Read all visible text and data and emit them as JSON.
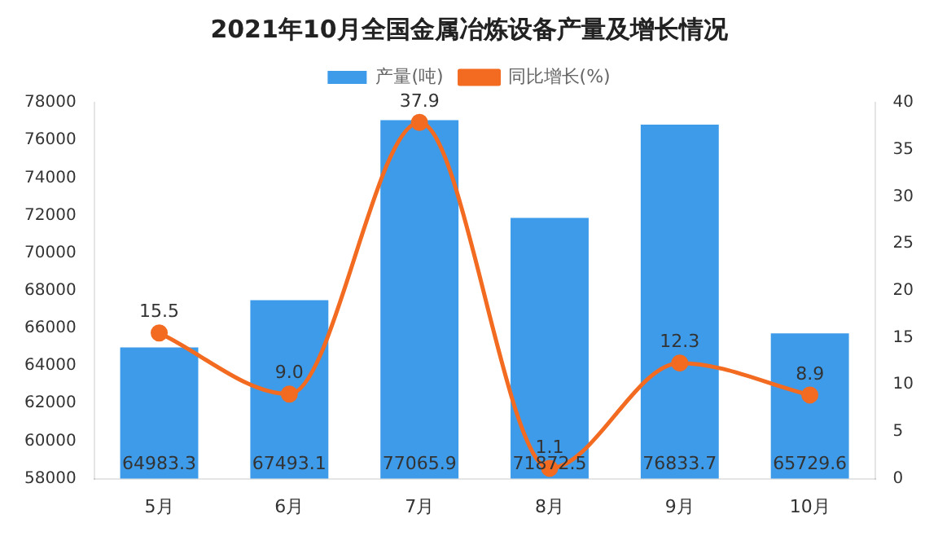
{
  "chart_data": {
    "type": "bar",
    "title": "2021年10月全国金属冶炼设备产量及增长情况",
    "categories": [
      "5月",
      "6月",
      "7月",
      "8月",
      "9月",
      "10月"
    ],
    "series": [
      {
        "name": "产量(吨)",
        "color": "#3d9be9",
        "values": [
          64983.3,
          67493.1,
          77065.9,
          71872.5,
          76833.7,
          65729.6
        ],
        "value_labels": [
          "64983.3",
          "67493.1",
          "77065.9",
          "71872.5",
          "76833.7",
          "65729.6"
        ]
      },
      {
        "name": "同比增长(%)",
        "type": "line",
        "axis": "y2",
        "color": "#f26b21",
        "values": [
          15.5,
          9.0,
          37.9,
          1.1,
          12.3,
          8.9
        ],
        "value_labels": [
          "15.5",
          "9.0",
          "37.9",
          "1.1",
          "12.3",
          "8.9"
        ]
      }
    ],
    "ylim": [
      58000,
      78000
    ],
    "yticks": [
      58000,
      60000,
      62000,
      64000,
      66000,
      68000,
      70000,
      72000,
      74000,
      76000,
      78000
    ],
    "y2lim": [
      0,
      40
    ],
    "y2ticks": [
      0,
      5,
      10,
      15,
      20,
      25,
      30,
      35,
      40
    ],
    "legend": "top",
    "marker": "circle",
    "grid": false
  }
}
